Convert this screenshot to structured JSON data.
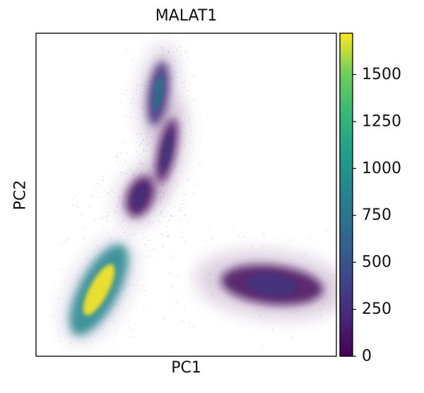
{
  "chart_data": {
    "type": "scatter",
    "title": "MALAT1",
    "xlabel": "PC1",
    "ylabel": "PC2",
    "xticks": [],
    "yticks": [],
    "grid": false,
    "color_variable": "MALAT1 expression",
    "colormap": "viridis",
    "colorbar": {
      "range": [
        0,
        1720
      ],
      "ticks": [
        0,
        250,
        500,
        750,
        1000,
        1250,
        1500
      ],
      "tick_labels": [
        "0",
        "250",
        "500",
        "750",
        "1000",
        "1250",
        "1500"
      ],
      "position": "right"
    },
    "clusters": [
      {
        "label": "bottom-left elongated cluster",
        "center_pc": [
          -0.7,
          -0.6
        ],
        "color_value_range": [
          900,
          1720
        ]
      },
      {
        "label": "upper-left top cluster",
        "center_pc": [
          -0.4,
          0.85
        ],
        "color_value_range": [
          250,
          700
        ]
      },
      {
        "label": "upper-left middle cluster",
        "center_pc": [
          -0.35,
          0.55
        ],
        "color_value_range": [
          50,
          300
        ]
      },
      {
        "label": "upper-left lower cluster",
        "center_pc": [
          -0.55,
          0.25
        ],
        "color_value_range": [
          50,
          250
        ]
      },
      {
        "label": "right elongated cluster",
        "center_pc": [
          0.7,
          -0.45
        ],
        "color_value_range": [
          50,
          300
        ]
      }
    ]
  }
}
